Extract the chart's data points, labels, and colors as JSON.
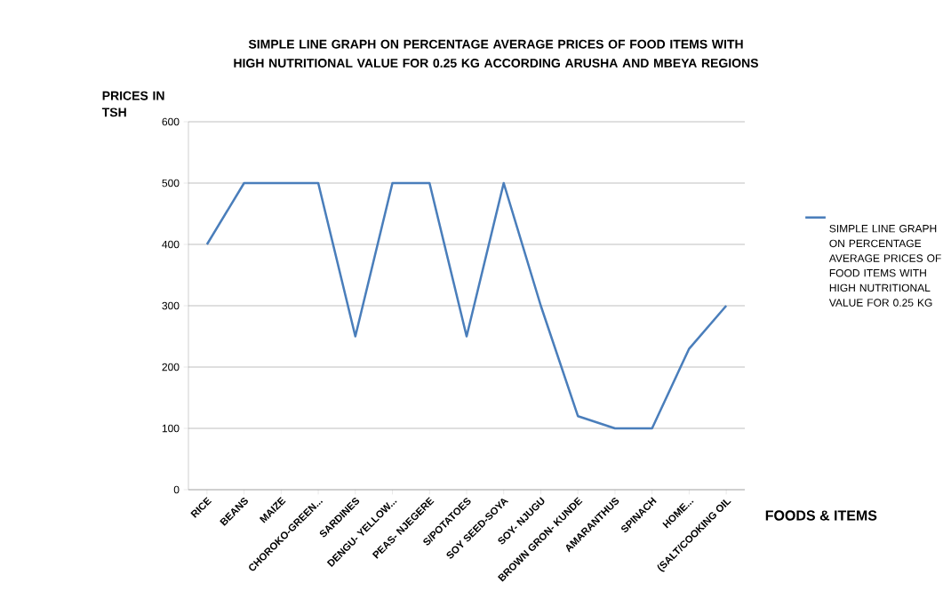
{
  "chart_data": {
    "type": "line",
    "title": "SIMPLE LINE GRAPH ON PERCENTAGE  AVERAGE PRICES OF FOOD ITEMS WITH HIGH NUTRITIONAL VALUE FOR 0.25 KG ACCORDING ARUSHA AND MBEYA REGIONS",
    "xlabel": "FOODS & ITEMS",
    "ylabel": "PRICES IN TSH",
    "categories": [
      "RICE",
      "BEANS",
      "MAIZE",
      "CHOROKO-GREEN...",
      "SARDINES",
      "DENGU- YELLOW...",
      "PEAS- NJEGERE",
      "S/POTATOES",
      "SOY SEED-SOYA",
      "SOY- NJUGU",
      "BROWN GRON- KUNDE",
      "AMARANTHUS",
      "SPINACH",
      "HOME...",
      "(SALT/COOKING OIL"
    ],
    "series": [
      {
        "name": "SIMPLE LINE GRAPH ON PERCENTAGE AVERAGE PRICES OF FOOD ITEMS WITH HIGH NUTRITIONAL VALUE FOR 0.25 KG",
        "color": "#4a7ebb",
        "values": [
          400,
          500,
          500,
          500,
          250,
          500,
          500,
          250,
          500,
          300,
          120,
          100,
          100,
          230,
          300
        ]
      }
    ],
    "ylim": [
      0,
      600
    ],
    "yticks": [
      0,
      100,
      200,
      300,
      400,
      500,
      600
    ],
    "grid": "y",
    "legend": "right",
    "marker": "none",
    "line_style": "solid"
  }
}
